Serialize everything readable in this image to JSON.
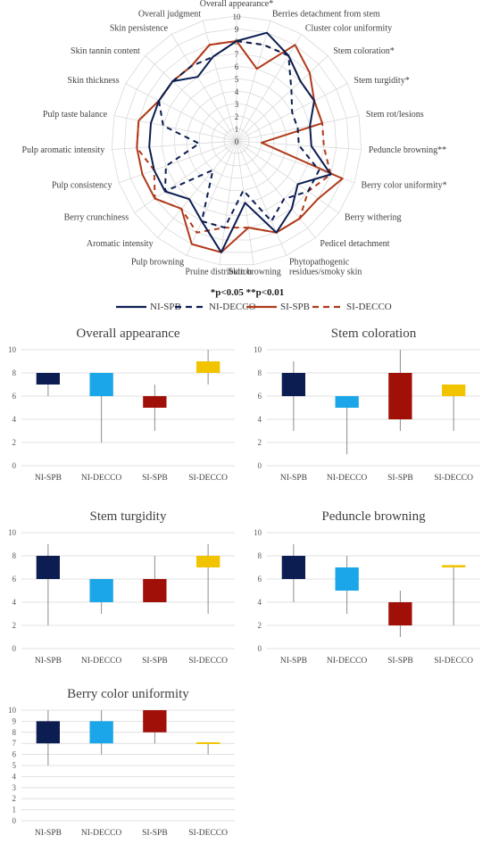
{
  "radar": {
    "significance_note": "*p<0.05 **p<0.01",
    "axis_labels": [
      "Overall appearance*",
      "Berries detachment from stem",
      "Cluster color uniformity",
      "Stem coloration*",
      "Stem turgidity*",
      "Stem rot/lesions",
      "Peduncle browning**",
      "Berry color uniformity*",
      "Berry withering",
      "Pedicel detachment",
      "Phytopathogenic residues/smoky skin",
      "Skin browning",
      "Pruine distribution",
      "Pulp browning",
      "Aromatic intensity",
      "Berry crunchiness",
      "Pulp consistency",
      "Pulp aromatic intensity",
      "Pulp taste balance",
      "Skin thickness",
      "Skin tannin content",
      "Skin persistence",
      "Overall judgment"
    ],
    "tick_labels": [
      "0",
      "1",
      "2",
      "3",
      "4",
      "5",
      "6",
      "7",
      "8",
      "9",
      "10"
    ]
  },
  "legend": [
    {
      "name": "NI-SPB",
      "color": "#0b1d51",
      "dash": false
    },
    {
      "name": "NI-DECCO",
      "color": "#0b1d51",
      "dash": true
    },
    {
      "name": "SI-SPB",
      "color": "#b03a1a",
      "dash": false
    },
    {
      "name": "SI-DECCO",
      "color": "#b03a1a",
      "dash": true
    }
  ],
  "chart_data": [
    {
      "type": "radar",
      "axes": [
        "Overall appearance*",
        "Berries detachment from stem",
        "Cluster color uniformity",
        "Stem coloration*",
        "Stem turgidity*",
        "Stem rot/lesions",
        "Peduncle browning**",
        "Berry color uniformity*",
        "Berry withering",
        "Pedicel detachment",
        "Phytopathogenic residues/smoky skin",
        "Skin browning",
        "Pruine distribution",
        "Pulp browning",
        "Aromatic intensity",
        "Berry crunchiness",
        "Pulp consistency",
        "Pulp aromatic intensity",
        "Pulp taste balance",
        "Skin thickness",
        "Skin tannin content",
        "Skin persistence",
        "Overall judgment"
      ],
      "rlim": [
        0,
        10
      ],
      "series": [
        {
          "name": "NI-SPB",
          "values": [
            8,
            9,
            8,
            7,
            7,
            6,
            6,
            8,
            6,
            7,
            8,
            5,
            9,
            7,
            6,
            7,
            7,
            7,
            7,
            7,
            7,
            6,
            7
          ]
        },
        {
          "name": "NI-DECCO",
          "values": [
            8,
            8,
            8,
            6,
            5,
            5,
            5,
            7,
            7,
            6,
            7,
            4,
            7,
            7,
            3,
            7,
            6,
            3,
            6,
            7,
            7,
            7,
            7
          ]
        },
        {
          "name": "SI-SPB",
          "values": [
            8,
            6,
            9,
            8,
            7,
            7,
            2,
            9,
            8,
            8,
            8,
            7,
            9,
            9,
            7,
            8,
            8,
            8,
            8,
            7,
            7,
            7,
            8
          ]
        },
        {
          "name": "SI-DECCO",
          "values": [
            8,
            8,
            8,
            7,
            7,
            7,
            7,
            8,
            7,
            8,
            8,
            7,
            7,
            8,
            7,
            8,
            7,
            8,
            8,
            7,
            7,
            7,
            8
          ]
        }
      ]
    },
    {
      "type": "box",
      "title": "Overall appearance",
      "categories": [
        "NI-SPB",
        "NI-DECCO",
        "SI-SPB",
        "SI-DECCO"
      ],
      "ylim": [
        0,
        10
      ],
      "yticks": [
        0,
        2,
        4,
        6,
        8,
        10
      ],
      "boxes": [
        {
          "min": 6,
          "q1": 7,
          "q3": 8,
          "max": 8
        },
        {
          "min": 2,
          "q1": 6,
          "q3": 8,
          "max": 8
        },
        {
          "min": 3,
          "q1": 5,
          "q3": 6,
          "max": 7
        },
        {
          "min": 7,
          "q1": 8,
          "q3": 9,
          "max": 10
        }
      ]
    },
    {
      "type": "box",
      "title": "Stem coloration",
      "categories": [
        "NI-SPB",
        "NI-DECCO",
        "SI-SPB",
        "SI-DECCO"
      ],
      "ylim": [
        0,
        10
      ],
      "yticks": [
        0,
        2,
        4,
        6,
        8,
        10
      ],
      "boxes": [
        {
          "min": 3,
          "q1": 6,
          "q3": 8,
          "max": 9
        },
        {
          "min": 1,
          "q1": 5,
          "q3": 6,
          "max": 6
        },
        {
          "min": 3,
          "q1": 4,
          "q3": 8,
          "max": 10
        },
        {
          "min": 3,
          "q1": 6,
          "q3": 7,
          "max": 7
        }
      ]
    },
    {
      "type": "box",
      "title": "Stem turgidity",
      "categories": [
        "NI-SPB",
        "NI-DECCO",
        "SI-SPB",
        "SI-DECCO"
      ],
      "ylim": [
        0,
        10
      ],
      "yticks": [
        0,
        2,
        4,
        6,
        8,
        10
      ],
      "boxes": [
        {
          "min": 2,
          "q1": 6,
          "q3": 8,
          "max": 9
        },
        {
          "min": 3,
          "q1": 4,
          "q3": 6,
          "max": 6
        },
        {
          "min": 4,
          "q1": 4,
          "q3": 6,
          "max": 8
        },
        {
          "min": 3,
          "q1": 7,
          "q3": 8,
          "max": 9
        }
      ]
    },
    {
      "type": "box",
      "title": "Peduncle browning",
      "categories": [
        "NI-SPB",
        "NI-DECCO",
        "SI-SPB",
        "SI-DECCO"
      ],
      "ylim": [
        0,
        10
      ],
      "yticks": [
        0,
        2,
        4,
        6,
        8,
        10
      ],
      "boxes": [
        {
          "min": 4,
          "q1": 6,
          "q3": 8,
          "max": 9
        },
        {
          "min": 3,
          "q1": 5,
          "q3": 7,
          "max": 8
        },
        {
          "min": 1,
          "q1": 2,
          "q3": 4,
          "max": 5
        },
        {
          "min": 2,
          "q1": 7,
          "q3": 7.2,
          "max": 7.2
        }
      ]
    },
    {
      "type": "box",
      "title": "Berry color uniformity",
      "categories": [
        "NI-SPB",
        "NI-DECCO",
        "SI-SPB",
        "SI-DECCO"
      ],
      "ylim": [
        0,
        10
      ],
      "yticks": [
        0,
        1,
        2,
        3,
        4,
        5,
        6,
        7,
        8,
        9,
        10
      ],
      "boxes": [
        {
          "min": 5,
          "q1": 7,
          "q3": 9,
          "max": 10
        },
        {
          "min": 6,
          "q1": 7,
          "q3": 9,
          "max": 10
        },
        {
          "min": 7,
          "q1": 8,
          "q3": 10,
          "max": 10
        },
        {
          "min": 6,
          "q1": 7,
          "q3": 7.1,
          "max": 7.1
        }
      ]
    }
  ],
  "box_colors": [
    "#0b1d51",
    "#1aa6e8",
    "#a01008",
    "#f2c400"
  ]
}
